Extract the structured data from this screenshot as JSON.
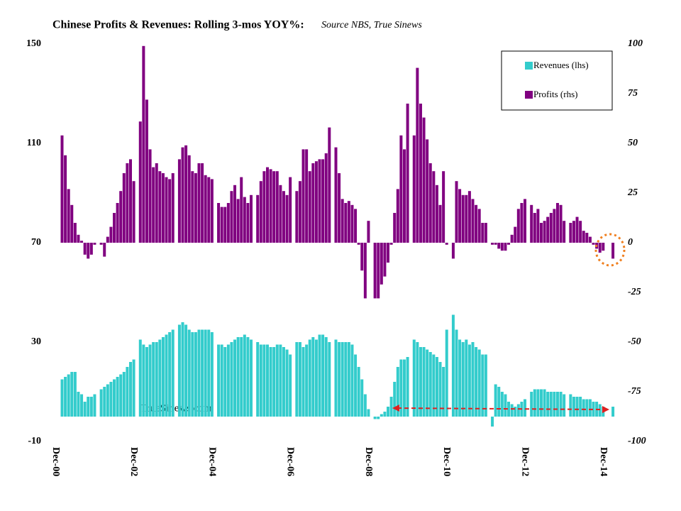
{
  "chart_data": {
    "type": "bar",
    "title": "Chinese Profits & Revenues: Rolling 3-mos YOY%:",
    "subtitle": "Source NBS, True Sinews",
    "annotations": [
      "TrueSinews.com"
    ],
    "categories": [
      "Dec-00",
      null,
      null,
      null,
      null,
      null,
      null,
      null,
      null,
      null,
      null,
      null,
      null,
      null,
      null,
      null,
      null,
      null,
      null,
      null,
      null,
      null,
      null,
      null,
      "Dec-02",
      null,
      null,
      null,
      null,
      null,
      null,
      null,
      null,
      null,
      null,
      null,
      null,
      null,
      null,
      null,
      null,
      null,
      null,
      null,
      null,
      null,
      null,
      null,
      "Dec-04",
      null,
      null,
      null,
      null,
      null,
      null,
      null,
      null,
      null,
      null,
      null,
      null,
      null,
      null,
      null,
      null,
      null,
      null,
      null,
      null,
      null,
      null,
      null,
      "Dec-06",
      null,
      null,
      null,
      null,
      null,
      null,
      null,
      null,
      null,
      null,
      null,
      null,
      null,
      null,
      null,
      null,
      null,
      null,
      null,
      null,
      null,
      null,
      null,
      "Dec-08",
      null,
      null,
      null,
      null,
      null,
      null,
      null,
      null,
      null,
      null,
      null,
      null,
      null,
      null,
      null,
      null,
      null,
      null,
      null,
      null,
      null,
      null,
      null,
      "Dec-10",
      null,
      null,
      null,
      null,
      null,
      null,
      null,
      null,
      null,
      null,
      null,
      null,
      null,
      null,
      null,
      null,
      null,
      null,
      null,
      null,
      null,
      null,
      null,
      "Dec-12",
      null,
      null,
      null,
      null,
      null,
      null,
      null,
      null,
      null,
      null,
      null,
      null,
      null,
      null,
      null,
      null,
      null,
      null,
      null,
      null,
      null,
      null,
      null,
      "Dec-14",
      null,
      null,
      null,
      null
    ],
    "series": [
      {
        "name": "Revenues (lhs)",
        "color": "#33cccc",
        "axis": "y",
        "values": [
          null,
          null,
          15,
          16,
          17,
          18,
          18,
          10,
          9,
          6,
          8,
          8,
          9,
          null,
          11,
          12,
          13,
          14,
          15,
          16,
          17,
          18,
          20,
          22,
          23,
          null,
          31,
          29,
          28,
          29,
          30,
          30,
          31,
          32,
          33,
          34,
          35,
          null,
          37,
          38,
          37,
          35,
          34,
          34,
          35,
          35,
          35,
          35,
          34,
          null,
          29,
          29,
          28,
          29,
          30,
          31,
          32,
          32,
          33,
          32,
          31,
          null,
          30,
          29,
          29,
          29,
          28,
          28,
          29,
          29,
          28,
          27,
          25,
          null,
          30,
          30,
          28,
          29,
          31,
          32,
          31,
          33,
          33,
          32,
          30,
          null,
          31,
          30,
          30,
          30,
          30,
          29,
          25,
          20,
          15,
          9,
          3,
          null,
          -1,
          -1,
          1,
          2,
          4,
          8,
          14,
          20,
          23,
          23,
          24,
          null,
          31,
          30,
          28,
          28,
          27,
          26,
          25,
          24,
          22,
          20,
          35,
          null,
          41,
          35,
          31,
          30,
          31,
          29,
          30,
          28,
          27,
          25,
          25,
          null,
          -4,
          13,
          12,
          10,
          9,
          6,
          5,
          4,
          5,
          6,
          7,
          null,
          10,
          11,
          11,
          11,
          11,
          10,
          10,
          10,
          10,
          10,
          9,
          null,
          9,
          8,
          8,
          8,
          7,
          7,
          7,
          6,
          6,
          5,
          4,
          null,
          null,
          4,
          null
        ]
      },
      {
        "name": "Profits (rhs)",
        "color": "#800080",
        "axis": "y2",
        "values": [
          null,
          null,
          54,
          44,
          27,
          19,
          10,
          4,
          1,
          -6,
          -8,
          -6,
          -1,
          null,
          -1,
          -7,
          3,
          8,
          15,
          20,
          26,
          35,
          40,
          42,
          31,
          null,
          61,
          99,
          72,
          47,
          38,
          40,
          36,
          35,
          33,
          32,
          35,
          null,
          42,
          48,
          49,
          44,
          36,
          35,
          40,
          40,
          34,
          33,
          32,
          null,
          20,
          18,
          18,
          20,
          26,
          29,
          22,
          33,
          23,
          20,
          24,
          null,
          24,
          31,
          36,
          38,
          37,
          36,
          36,
          29,
          26,
          24,
          33,
          null,
          26,
          31,
          47,
          47,
          36,
          40,
          41,
          42,
          42,
          45,
          58,
          null,
          48,
          35,
          22,
          20,
          21,
          19,
          17,
          -1,
          -14,
          -28,
          11,
          null,
          -28,
          -28,
          -21,
          -17,
          -10,
          -1,
          15,
          27,
          54,
          47,
          70,
          null,
          54,
          88,
          70,
          63,
          52,
          40,
          36,
          29,
          19,
          36,
          -1,
          null,
          -8,
          31,
          27,
          24,
          24,
          26,
          22,
          19,
          17,
          10,
          10,
          null,
          -1,
          -1,
          -3,
          -4,
          -4,
          -1,
          4,
          8,
          17,
          20,
          22,
          null,
          19,
          15,
          17,
          10,
          11,
          13,
          15,
          17,
          20,
          19,
          11,
          null,
          10,
          11,
          13,
          11,
          6,
          5,
          3,
          -1,
          -3,
          -5,
          -4,
          null,
          null,
          -8,
          null
        ]
      }
    ],
    "ylim": [
      -10,
      150
    ],
    "yticks": [
      -10,
      30,
      70,
      110,
      150
    ],
    "y2lim": [
      -100,
      100
    ],
    "y2ticks": [
      -100,
      -75,
      -50,
      -25,
      0,
      25,
      50,
      75,
      100
    ],
    "negative_tick_color": "#e00000",
    "legend": "top-right"
  }
}
